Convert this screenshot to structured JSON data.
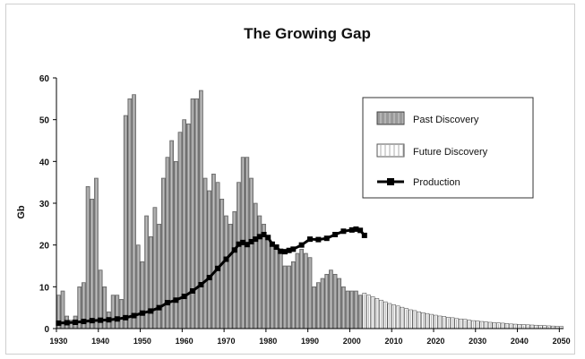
{
  "chart_data": {
    "type": "bar",
    "title": "The Growing Gap",
    "ylabel": "Gb",
    "xlabel": "",
    "xlim": [
      1930,
      2050
    ],
    "ylim": [
      0,
      60
    ],
    "y_ticks": [
      0,
      10,
      20,
      30,
      40,
      50,
      60
    ],
    "x_ticks": [
      1930,
      1940,
      1950,
      1960,
      1970,
      1980,
      1990,
      2000,
      2010,
      2020,
      2030,
      2040,
      2050
    ],
    "grid": false,
    "legend_position": "top-right",
    "series": [
      {
        "name": "Past Discovery",
        "kind": "bar",
        "color": "#9a9a9a",
        "x": [
          1930,
          1931,
          1932,
          1933,
          1934,
          1935,
          1936,
          1937,
          1938,
          1939,
          1940,
          1941,
          1942,
          1943,
          1944,
          1945,
          1946,
          1947,
          1948,
          1949,
          1950,
          1951,
          1952,
          1953,
          1954,
          1955,
          1956,
          1957,
          1958,
          1959,
          1960,
          1961,
          1962,
          1963,
          1964,
          1965,
          1966,
          1967,
          1968,
          1969,
          1970,
          1971,
          1972,
          1973,
          1974,
          1975,
          1976,
          1977,
          1978,
          1979,
          1980,
          1981,
          1982,
          1983,
          1984,
          1985,
          1986,
          1987,
          1988,
          1989,
          1990,
          1991,
          1992,
          1993,
          1994,
          1995,
          1996,
          1997,
          1998,
          1999,
          2000,
          2001,
          2002
        ],
        "values": [
          8,
          9,
          3,
          2,
          3,
          10,
          11,
          34,
          31,
          36,
          14,
          10,
          4,
          8,
          8,
          7,
          51,
          55,
          56,
          20,
          16,
          27,
          22,
          29,
          25,
          36,
          41,
          45,
          40,
          47,
          50,
          49,
          55,
          55,
          57,
          36,
          33,
          37,
          35,
          31,
          27,
          25,
          28,
          35,
          41,
          41,
          36,
          30,
          27,
          25,
          22,
          20,
          19,
          18,
          15,
          15,
          16,
          18,
          19,
          18,
          17,
          10,
          11,
          12,
          13,
          14,
          13,
          12,
          10,
          9,
          9,
          9,
          8
        ]
      },
      {
        "name": "Future Discovery",
        "kind": "bar",
        "color": "#ffffff",
        "x": [
          2003,
          2004,
          2005,
          2006,
          2007,
          2008,
          2009,
          2010,
          2011,
          2012,
          2013,
          2014,
          2015,
          2016,
          2017,
          2018,
          2019,
          2020,
          2021,
          2022,
          2023,
          2024,
          2025,
          2026,
          2027,
          2028,
          2029,
          2030,
          2031,
          2032,
          2033,
          2034,
          2035,
          2036,
          2037,
          2038,
          2039,
          2040,
          2041,
          2042,
          2043,
          2044,
          2045,
          2046,
          2047,
          2048,
          2049,
          2050
        ],
        "values": [
          8.5,
          8,
          7.6,
          7.2,
          6.8,
          6.4,
          6.0,
          5.7,
          5.4,
          5.1,
          4.8,
          4.5,
          4.3,
          4.0,
          3.8,
          3.6,
          3.4,
          3.2,
          3.0,
          2.9,
          2.7,
          2.6,
          2.4,
          2.3,
          2.2,
          2.0,
          1.9,
          1.8,
          1.7,
          1.6,
          1.5,
          1.4,
          1.35,
          1.3,
          1.2,
          1.1,
          1.05,
          1.0,
          0.95,
          0.9,
          0.85,
          0.8,
          0.75,
          0.7,
          0.65,
          0.6,
          0.55,
          0.5
        ]
      },
      {
        "name": "Production",
        "kind": "line",
        "color": "#000000",
        "x": [
          1930,
          1932,
          1934,
          1936,
          1938,
          1940,
          1942,
          1944,
          1946,
          1948,
          1950,
          1952,
          1954,
          1956,
          1958,
          1960,
          1962,
          1964,
          1966,
          1968,
          1970,
          1972,
          1973,
          1974,
          1975,
          1976,
          1977,
          1978,
          1979,
          1980,
          1981,
          1982,
          1983,
          1984,
          1985,
          1986,
          1988,
          1990,
          1992,
          1994,
          1996,
          1998,
          2000,
          2001,
          2002,
          2003
        ],
        "values": [
          1.3,
          1.4,
          1.5,
          1.7,
          1.9,
          2.0,
          2.1,
          2.3,
          2.6,
          3.1,
          3.7,
          4.2,
          5.0,
          6.2,
          6.8,
          7.7,
          9.0,
          10.5,
          12.2,
          14.4,
          16.6,
          18.8,
          20.2,
          20.6,
          20.1,
          20.8,
          21.4,
          22.0,
          22.5,
          21.8,
          20.2,
          19.5,
          18.5,
          18.4,
          18.7,
          19.0,
          20.0,
          21.4,
          21.3,
          21.6,
          22.5,
          23.3,
          23.6,
          23.8,
          23.5,
          22.3
        ]
      }
    ]
  }
}
